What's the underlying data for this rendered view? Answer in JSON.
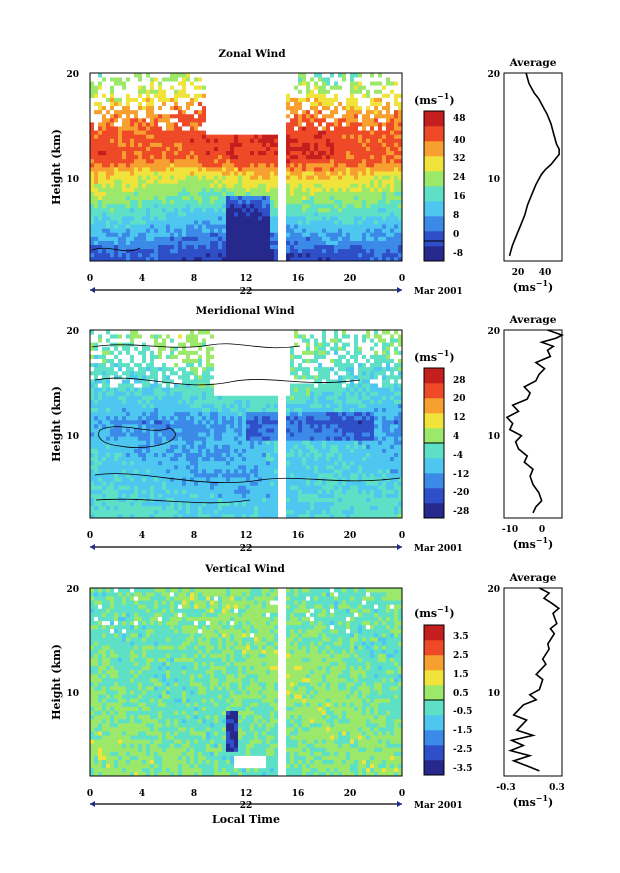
{
  "figure": {
    "x_axis_label": "Local Time",
    "date_label": "Mar 2001",
    "x_ticks": [
      "0",
      "4",
      "8",
      "12",
      "16",
      "20",
      "0"
    ],
    "y_ticks": [
      "20",
      "10"
    ],
    "unit_label_main": "(ms",
    "unit_label_sup": "−1",
    "unit_label_close": ")",
    "average_title": "Average",
    "ylabel": "Height (km)"
  },
  "panels": [
    {
      "id": "zonal",
      "title": "Zonal Wind",
      "day_label": "22",
      "colorbar_ticks": [
        "48",
        "40",
        "32",
        "24",
        "16",
        "8",
        "0",
        "-8"
      ],
      "avg_x_ticks": [
        "20",
        "40"
      ],
      "avg_xlim": [
        10,
        52
      ]
    },
    {
      "id": "meridional",
      "title": "Meridional Wind",
      "day_label": "22",
      "colorbar_ticks": [
        "28",
        "20",
        "12",
        "4",
        "-4",
        "-12",
        "-20",
        "-28"
      ],
      "avg_x_ticks": [
        "-10",
        "0"
      ],
      "avg_xlim": [
        -14,
        6
      ]
    },
    {
      "id": "vertical",
      "title": "Vertical Wind",
      "day_label": "22",
      "colorbar_ticks": [
        "3.5",
        "2.5",
        "1.5",
        "0.5",
        "-0.5",
        "-1.5",
        "-2.5",
        "-3.5"
      ],
      "avg_x_ticks": [
        "-0.3",
        "0.3"
      ],
      "avg_xlim": [
        -0.5,
        0.4
      ]
    }
  ],
  "chart_data": [
    {
      "type": "heatmap",
      "title": "Zonal Wind",
      "xlabel": "",
      "ylabel": "Height (km)",
      "xlim": [
        0,
        24
      ],
      "ylim": [
        1.5,
        20
      ],
      "colorbar_range": [
        -8,
        52
      ],
      "colors": [
        "#26288c",
        "#2f4fc8",
        "#3c8ae8",
        "#4ec7f0",
        "#5ee0c6",
        "#9be86a",
        "#f0e43c",
        "#f7a030",
        "#ee4a28",
        "#c41e1e"
      ],
      "height_profile_km": [
        2,
        4,
        6,
        8,
        10,
        11,
        12,
        14,
        16,
        18,
        20
      ],
      "mean_profile": [
        0,
        8,
        16,
        24,
        32,
        40,
        44,
        44,
        40,
        30,
        24
      ]
    },
    {
      "type": "line",
      "title": "Average",
      "xlabel": "(ms−1)",
      "ylabel": "",
      "xlim": [
        10,
        52
      ],
      "ylim": [
        1.5,
        20
      ],
      "x": [
        14,
        16,
        19,
        22,
        25,
        27,
        30,
        33,
        35,
        37,
        40,
        44,
        47,
        50,
        50,
        48,
        46,
        44,
        41,
        39,
        37,
        35,
        32,
        30,
        28,
        26
      ],
      "y": [
        2,
        3,
        4,
        5,
        6,
        7,
        8,
        9,
        9.5,
        10,
        10.5,
        11,
        11.5,
        12,
        12.5,
        13,
        14,
        15,
        16,
        16.5,
        17,
        17.5,
        18,
        18.5,
        19,
        20
      ]
    },
    {
      "type": "heatmap",
      "title": "Meridional Wind",
      "xlabel": "",
      "ylabel": "Height (km)",
      "xlim": [
        0,
        24
      ],
      "ylim": [
        1.5,
        20
      ],
      "colorbar_range": [
        -32,
        32
      ],
      "colors": [
        "#26288c",
        "#2f4fc8",
        "#3c8ae8",
        "#4ec7f0",
        "#5ee0c6",
        "#9be86a",
        "#f0e43c",
        "#f7a030",
        "#ee4a28",
        "#c41e1e"
      ],
      "height_profile_km": [
        2,
        4,
        6,
        8,
        10,
        11,
        12,
        14,
        16,
        18,
        20
      ],
      "mean_profile": [
        -6,
        -8,
        -10,
        -10,
        -12,
        -14,
        -8,
        -4,
        -2,
        0,
        2
      ]
    },
    {
      "type": "line",
      "title": "Average",
      "xlabel": "(ms−1)",
      "ylabel": "",
      "xlim": [
        -14,
        6
      ],
      "ylim": [
        1.5,
        20
      ],
      "x": [
        -4,
        -3,
        -1,
        -2,
        -4,
        -5,
        -4,
        -7,
        -6,
        -9,
        -10,
        -8,
        -12,
        -11,
        -13,
        -9,
        -11,
        -6,
        -5,
        -7,
        -3,
        -2,
        0,
        -3,
        2,
        1,
        3,
        -1,
        4,
        6,
        3,
        1
      ],
      "y": [
        2,
        2.6,
        3.2,
        4,
        4.8,
        5.6,
        6.3,
        7,
        7.6,
        8.3,
        9,
        9.6,
        10.2,
        10.8,
        11.4,
        12,
        12.6,
        13.2,
        13.8,
        14.4,
        15,
        15.6,
        16.2,
        16.8,
        17.4,
        18,
        18.4,
        18.8,
        19.2,
        19.5,
        19.8,
        20
      ]
    },
    {
      "type": "heatmap",
      "title": "Vertical Wind",
      "xlabel": "Local Time",
      "ylabel": "Height (km)",
      "xlim": [
        0,
        24
      ],
      "ylim": [
        1.5,
        20
      ],
      "colorbar_range": [
        -4,
        4
      ],
      "colors": [
        "#26288c",
        "#2f4fc8",
        "#3c8ae8",
        "#4ec7f0",
        "#5ee0c6",
        "#9be86a",
        "#f0e43c",
        "#f7a030",
        "#ee4a28",
        "#c41e1e"
      ],
      "height_profile_km": [
        2,
        4,
        6,
        8,
        10,
        11,
        12,
        14,
        16,
        18,
        20
      ],
      "mean_profile": [
        0,
        0,
        0,
        0,
        0,
        0,
        0,
        0,
        0,
        0,
        0
      ]
    },
    {
      "type": "line",
      "title": "Average",
      "xlabel": "(ms−1)",
      "ylabel": "",
      "xlim": [
        -0.5,
        0.4
      ],
      "ylim": [
        1.5,
        20
      ],
      "x": [
        0.05,
        -0.15,
        -0.35,
        -0.1,
        -0.4,
        -0.2,
        -0.38,
        -0.05,
        -0.3,
        -0.15,
        -0.35,
        -0.2,
        0.0,
        -0.1,
        0.05,
        0.1,
        0.0,
        0.15,
        0.1,
        0.2,
        0.18,
        0.28,
        0.22,
        0.32,
        0.26,
        0.35,
        0.24,
        0.12,
        0.2,
        0.05
      ],
      "y": [
        2,
        2.5,
        3,
        3.5,
        4,
        4.5,
        5,
        5.5,
        6,
        7,
        7.5,
        8.5,
        9,
        9.5,
        10,
        11,
        11.5,
        12.5,
        13,
        14,
        14.5,
        15.5,
        16,
        16.5,
        17.5,
        18,
        18.5,
        19,
        19.5,
        20
      ]
    }
  ]
}
